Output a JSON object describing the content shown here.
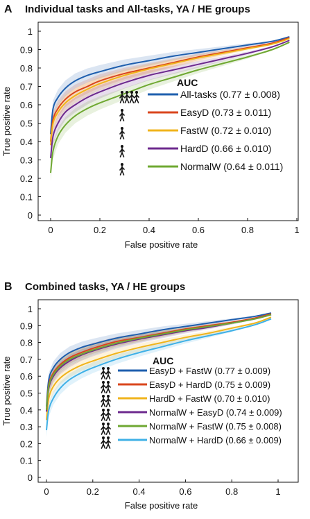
{
  "chart_data": [
    {
      "type": "line",
      "panel": "A",
      "title": "Individual tasks and All-tasks, YA / HE groups",
      "xlabel": "False positive rate",
      "ylabel": "True positive rate",
      "xlim": [
        0,
        1
      ],
      "ylim": [
        0,
        1
      ],
      "x_ticks": [
        "0",
        "0.2",
        "0.4",
        "0.6",
        "0.8",
        "1"
      ],
      "y_ticks": [
        "0",
        "0.1",
        "0.2",
        "0.3",
        "0.4",
        "0.5",
        "0.6",
        "0.7",
        "0.8",
        "0.9",
        "1"
      ],
      "legend_title": "AUC",
      "legend_position": "center-right",
      "series": [
        {
          "name": "All-tasks",
          "label": "All-tasks (0.77 ± 0.008)",
          "color": "#1f5fae",
          "x": [
            0,
            0.01,
            0.03,
            0.06,
            0.1,
            0.15,
            0.2,
            0.3,
            0.4,
            0.5,
            0.6,
            0.7,
            0.8,
            0.9,
            0.97
          ],
          "y": [
            0.44,
            0.58,
            0.64,
            0.69,
            0.73,
            0.76,
            0.78,
            0.815,
            0.84,
            0.865,
            0.885,
            0.905,
            0.925,
            0.945,
            0.97
          ]
        },
        {
          "name": "EasyD",
          "label": "EasyD (0.73 ± 0.011)",
          "color": "#d9461d",
          "x": [
            0,
            0.01,
            0.03,
            0.06,
            0.1,
            0.15,
            0.2,
            0.3,
            0.4,
            0.5,
            0.6,
            0.7,
            0.8,
            0.9,
            0.97
          ],
          "y": [
            0.4,
            0.52,
            0.58,
            0.63,
            0.67,
            0.7,
            0.73,
            0.77,
            0.8,
            0.83,
            0.86,
            0.885,
            0.91,
            0.935,
            0.965
          ]
        },
        {
          "name": "FastW",
          "label": "FastW (0.72 ± 0.010)",
          "color": "#f0b41c",
          "x": [
            0,
            0.01,
            0.03,
            0.06,
            0.1,
            0.15,
            0.2,
            0.3,
            0.4,
            0.5,
            0.6,
            0.7,
            0.8,
            0.9,
            0.97
          ],
          "y": [
            0.38,
            0.5,
            0.56,
            0.61,
            0.65,
            0.685,
            0.715,
            0.76,
            0.795,
            0.825,
            0.855,
            0.88,
            0.905,
            0.93,
            0.96
          ]
        },
        {
          "name": "HardD",
          "label": "HardD (0.66 ± 0.010)",
          "color": "#6d2a8e",
          "x": [
            0,
            0.01,
            0.03,
            0.06,
            0.1,
            0.15,
            0.2,
            0.3,
            0.4,
            0.5,
            0.6,
            0.7,
            0.8,
            0.9,
            0.97
          ],
          "y": [
            0.31,
            0.43,
            0.5,
            0.56,
            0.6,
            0.64,
            0.67,
            0.72,
            0.76,
            0.79,
            0.82,
            0.85,
            0.88,
            0.915,
            0.95
          ]
        },
        {
          "name": "NormalW",
          "label": "NormalW (0.64 ± 0.011)",
          "color": "#6fa832",
          "x": [
            0,
            0.01,
            0.03,
            0.06,
            0.1,
            0.15,
            0.2,
            0.3,
            0.4,
            0.5,
            0.6,
            0.7,
            0.8,
            0.9,
            0.97
          ],
          "y": [
            0.23,
            0.35,
            0.43,
            0.49,
            0.54,
            0.58,
            0.61,
            0.66,
            0.71,
            0.75,
            0.79,
            0.825,
            0.86,
            0.9,
            0.94
          ]
        }
      ]
    },
    {
      "type": "line",
      "panel": "B",
      "title": "Combined tasks, YA / HE groups",
      "xlabel": "False positive rate",
      "ylabel": "True positive rate",
      "xlim": [
        0,
        1
      ],
      "ylim": [
        0,
        1
      ],
      "x_ticks": [
        "0",
        "0.2",
        "0.4",
        "0.6",
        "0.8",
        "1"
      ],
      "y_ticks": [
        "0",
        "0.1",
        "0.2",
        "0.3",
        "0.4",
        "0.5",
        "0.6",
        "0.7",
        "0.8",
        "0.9",
        "1"
      ],
      "legend_title": "AUC",
      "legend_position": "center-right",
      "series": [
        {
          "name": "EasyD + FastW",
          "label": "EasyD + FastW (0.77 ± 0.009)",
          "color": "#1f5fae",
          "x": [
            0,
            0.01,
            0.03,
            0.06,
            0.1,
            0.15,
            0.2,
            0.3,
            0.4,
            0.5,
            0.6,
            0.7,
            0.8,
            0.9,
            0.97
          ],
          "y": [
            0.42,
            0.58,
            0.65,
            0.7,
            0.74,
            0.77,
            0.79,
            0.825,
            0.85,
            0.875,
            0.895,
            0.915,
            0.935,
            0.955,
            0.975
          ]
        },
        {
          "name": "EasyD + HardD",
          "label": "EasyD + HardD (0.75 ± 0.009)",
          "color": "#d9461d",
          "x": [
            0,
            0.01,
            0.03,
            0.06,
            0.1,
            0.15,
            0.2,
            0.3,
            0.4,
            0.5,
            0.6,
            0.7,
            0.8,
            0.9,
            0.97
          ],
          "y": [
            0.4,
            0.55,
            0.62,
            0.67,
            0.71,
            0.74,
            0.765,
            0.805,
            0.83,
            0.855,
            0.88,
            0.9,
            0.92,
            0.945,
            0.97
          ]
        },
        {
          "name": "HardD + FastW",
          "label": "HardD + FastW (0.70 ± 0.010)",
          "color": "#f0b41c",
          "x": [
            0,
            0.01,
            0.03,
            0.06,
            0.1,
            0.15,
            0.2,
            0.3,
            0.4,
            0.5,
            0.6,
            0.7,
            0.8,
            0.9,
            0.97
          ],
          "y": [
            0.34,
            0.47,
            0.54,
            0.59,
            0.63,
            0.665,
            0.69,
            0.735,
            0.77,
            0.8,
            0.83,
            0.855,
            0.885,
            0.915,
            0.95
          ]
        },
        {
          "name": "NormalW + EasyD",
          "label": "NormalW + EasyD (0.74 ± 0.009)",
          "color": "#6d2a8e",
          "x": [
            0,
            0.01,
            0.03,
            0.06,
            0.1,
            0.15,
            0.2,
            0.3,
            0.4,
            0.5,
            0.6,
            0.7,
            0.8,
            0.9,
            0.97
          ],
          "y": [
            0.39,
            0.53,
            0.6,
            0.65,
            0.69,
            0.725,
            0.75,
            0.79,
            0.82,
            0.845,
            0.87,
            0.89,
            0.915,
            0.94,
            0.965
          ]
        },
        {
          "name": "NormalW + FastW",
          "label": "NormalW + FastW (0.75 ± 0.008)",
          "color": "#6fa832",
          "x": [
            0,
            0.01,
            0.03,
            0.06,
            0.1,
            0.15,
            0.2,
            0.3,
            0.4,
            0.5,
            0.6,
            0.7,
            0.8,
            0.9,
            0.97
          ],
          "y": [
            0.4,
            0.54,
            0.61,
            0.66,
            0.7,
            0.73,
            0.755,
            0.795,
            0.825,
            0.85,
            0.875,
            0.895,
            0.915,
            0.94,
            0.965
          ]
        },
        {
          "name": "NormalW + HardD",
          "label": "NormalW + HardD (0.66 ± 0.009)",
          "color": "#3fb0e6",
          "x": [
            0,
            0.01,
            0.03,
            0.06,
            0.1,
            0.15,
            0.2,
            0.3,
            0.4,
            0.5,
            0.6,
            0.7,
            0.8,
            0.9,
            0.97
          ],
          "y": [
            0.28,
            0.4,
            0.47,
            0.53,
            0.58,
            0.62,
            0.65,
            0.7,
            0.74,
            0.775,
            0.81,
            0.84,
            0.87,
            0.905,
            0.94
          ]
        }
      ]
    }
  ]
}
